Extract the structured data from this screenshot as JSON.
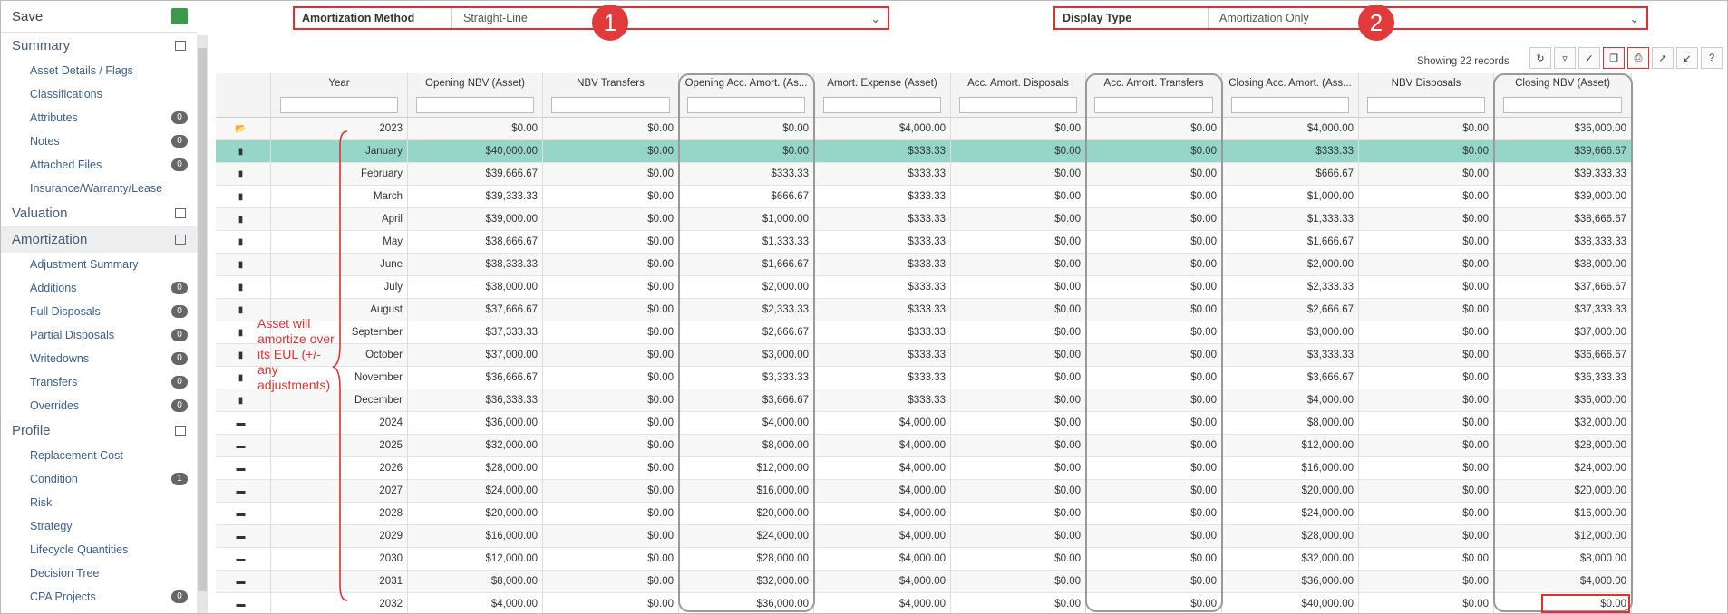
{
  "sidebar": {
    "save": "Save",
    "sections": [
      {
        "title": "Summary",
        "items": [
          {
            "label": "Asset Details / Flags"
          },
          {
            "label": "Classifications"
          },
          {
            "label": "Attributes",
            "badge": 0
          },
          {
            "label": "Notes",
            "badge": 0
          },
          {
            "label": "Attached Files",
            "badge": 0
          },
          {
            "label": "Insurance/Warranty/Lease"
          }
        ]
      },
      {
        "title": "Valuation",
        "items": []
      },
      {
        "title": "Amortization",
        "items": [
          {
            "label": "Adjustment Summary"
          },
          {
            "label": "Additions",
            "badge": 0
          },
          {
            "label": "Full Disposals",
            "badge": 0
          },
          {
            "label": "Partial Disposals",
            "badge": 0
          },
          {
            "label": "Writedowns",
            "badge": 0
          },
          {
            "label": "Transfers",
            "badge": 0
          },
          {
            "label": "Overrides",
            "badge": 0
          }
        ]
      },
      {
        "title": "Profile",
        "items": [
          {
            "label": "Replacement Cost"
          },
          {
            "label": "Condition",
            "badge": 1
          },
          {
            "label": "Risk"
          },
          {
            "label": "Strategy"
          },
          {
            "label": "Lifecycle Quantities"
          },
          {
            "label": "Decision Tree"
          },
          {
            "label": "CPA Projects",
            "badge": 0
          }
        ]
      }
    ]
  },
  "toolbar": {
    "amortization_method": {
      "label": "Amortization Method",
      "value": "Straight-Line",
      "callout": "1"
    },
    "display_type": {
      "label": "Display Type",
      "value": "Amortization Only",
      "callout": "2"
    },
    "records": "Showing 22 records"
  },
  "annotation": "Asset will amortize over its EUL (+/- any adjustments)",
  "table": {
    "columns": [
      "Year",
      "Opening NBV (Asset)",
      "NBV Transfers",
      "Opening Acc. Amort. (As...",
      "Amort. Expense (Asset)",
      "Acc. Amort. Disposals",
      "Acc. Amort. Transfers",
      "Closing Acc. Amort. (Ass...",
      "NBV Disposals",
      "Closing NBV (Asset)"
    ],
    "rows": [
      [
        "2023",
        "$0.00",
        "$0.00",
        "$0.00",
        "$4,000.00",
        "$0.00",
        "$0.00",
        "$4,000.00",
        "$0.00",
        "$36,000.00"
      ],
      [
        "January",
        "$40,000.00",
        "$0.00",
        "$0.00",
        "$333.33",
        "$0.00",
        "$0.00",
        "$333.33",
        "$0.00",
        "$39,666.67"
      ],
      [
        "February",
        "$39,666.67",
        "$0.00",
        "$333.33",
        "$333.33",
        "$0.00",
        "$0.00",
        "$666.67",
        "$0.00",
        "$39,333.33"
      ],
      [
        "March",
        "$39,333.33",
        "$0.00",
        "$666.67",
        "$333.33",
        "$0.00",
        "$0.00",
        "$1,000.00",
        "$0.00",
        "$39,000.00"
      ],
      [
        "April",
        "$39,000.00",
        "$0.00",
        "$1,000.00",
        "$333.33",
        "$0.00",
        "$0.00",
        "$1,333.33",
        "$0.00",
        "$38,666.67"
      ],
      [
        "May",
        "$38,666.67",
        "$0.00",
        "$1,333.33",
        "$333.33",
        "$0.00",
        "$0.00",
        "$1,666.67",
        "$0.00",
        "$38,333.33"
      ],
      [
        "June",
        "$38,333.33",
        "$0.00",
        "$1,666.67",
        "$333.33",
        "$0.00",
        "$0.00",
        "$2,000.00",
        "$0.00",
        "$38,000.00"
      ],
      [
        "July",
        "$38,000.00",
        "$0.00",
        "$2,000.00",
        "$333.33",
        "$0.00",
        "$0.00",
        "$2,333.33",
        "$0.00",
        "$37,666.67"
      ],
      [
        "August",
        "$37,666.67",
        "$0.00",
        "$2,333.33",
        "$333.33",
        "$0.00",
        "$0.00",
        "$2,666.67",
        "$0.00",
        "$37,333.33"
      ],
      [
        "September",
        "$37,333.33",
        "$0.00",
        "$2,666.67",
        "$333.33",
        "$0.00",
        "$0.00",
        "$3,000.00",
        "$0.00",
        "$37,000.00"
      ],
      [
        "October",
        "$37,000.00",
        "$0.00",
        "$3,000.00",
        "$333.33",
        "$0.00",
        "$0.00",
        "$3,333.33",
        "$0.00",
        "$36,666.67"
      ],
      [
        "November",
        "$36,666.67",
        "$0.00",
        "$3,333.33",
        "$333.33",
        "$0.00",
        "$0.00",
        "$3,666.67",
        "$0.00",
        "$36,333.33"
      ],
      [
        "December",
        "$36,333.33",
        "$0.00",
        "$3,666.67",
        "$333.33",
        "$0.00",
        "$0.00",
        "$4,000.00",
        "$0.00",
        "$36,000.00"
      ],
      [
        "2024",
        "$36,000.00",
        "$0.00",
        "$4,000.00",
        "$4,000.00",
        "$0.00",
        "$0.00",
        "$8,000.00",
        "$0.00",
        "$32,000.00"
      ],
      [
        "2025",
        "$32,000.00",
        "$0.00",
        "$8,000.00",
        "$4,000.00",
        "$0.00",
        "$0.00",
        "$12,000.00",
        "$0.00",
        "$28,000.00"
      ],
      [
        "2026",
        "$28,000.00",
        "$0.00",
        "$12,000.00",
        "$4,000.00",
        "$0.00",
        "$0.00",
        "$16,000.00",
        "$0.00",
        "$24,000.00"
      ],
      [
        "2027",
        "$24,000.00",
        "$0.00",
        "$16,000.00",
        "$4,000.00",
        "$0.00",
        "$0.00",
        "$20,000.00",
        "$0.00",
        "$20,000.00"
      ],
      [
        "2028",
        "$20,000.00",
        "$0.00",
        "$20,000.00",
        "$4,000.00",
        "$0.00",
        "$0.00",
        "$24,000.00",
        "$0.00",
        "$16,000.00"
      ],
      [
        "2029",
        "$16,000.00",
        "$0.00",
        "$24,000.00",
        "$4,000.00",
        "$0.00",
        "$0.00",
        "$28,000.00",
        "$0.00",
        "$12,000.00"
      ],
      [
        "2030",
        "$12,000.00",
        "$0.00",
        "$28,000.00",
        "$4,000.00",
        "$0.00",
        "$0.00",
        "$32,000.00",
        "$0.00",
        "$8,000.00"
      ],
      [
        "2031",
        "$8,000.00",
        "$0.00",
        "$32,000.00",
        "$4,000.00",
        "$0.00",
        "$0.00",
        "$36,000.00",
        "$0.00",
        "$4,000.00"
      ],
      [
        "2032",
        "$4,000.00",
        "$0.00",
        "$36,000.00",
        "$4,000.00",
        "$0.00",
        "$0.00",
        "$40,000.00",
        "$0.00",
        "$0.00"
      ]
    ]
  }
}
